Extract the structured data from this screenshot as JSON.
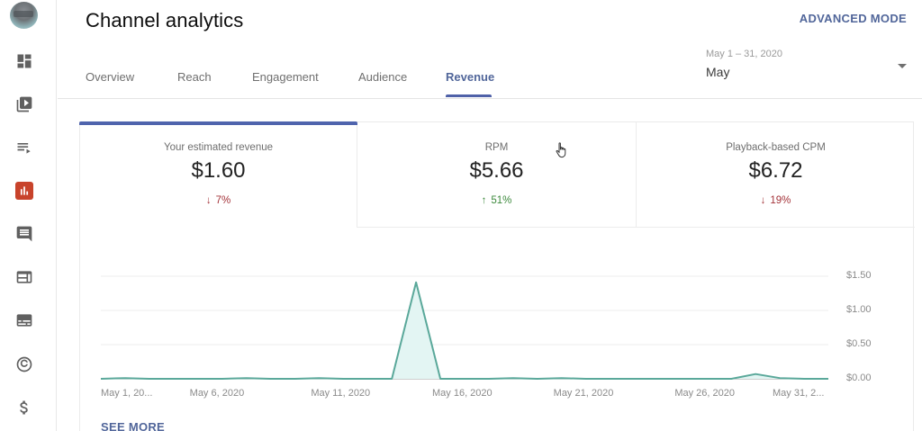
{
  "sidebar": {
    "items": [
      {
        "name": "dashboard",
        "icon": "dashboard-icon",
        "active": false
      },
      {
        "name": "content",
        "icon": "video-library-icon",
        "active": false
      },
      {
        "name": "playlists",
        "icon": "playlist-icon",
        "active": false
      },
      {
        "name": "analytics",
        "icon": "analytics-icon",
        "active": true
      },
      {
        "name": "comments",
        "icon": "comment-icon",
        "active": false
      },
      {
        "name": "subtitles",
        "icon": "web-icon",
        "active": false
      },
      {
        "name": "subtitles-cc",
        "icon": "subtitles-icon",
        "active": false
      },
      {
        "name": "copyright",
        "icon": "copyright-icon",
        "active": false
      },
      {
        "name": "monetization",
        "icon": "dollar-icon",
        "active": false
      }
    ],
    "active_color": "#c8432b"
  },
  "header": {
    "title": "Channel analytics",
    "advanced_mode": "ADVANCED MODE",
    "tabs": [
      {
        "label": "Overview",
        "active": false
      },
      {
        "label": "Reach",
        "active": false
      },
      {
        "label": "Engagement",
        "active": false
      },
      {
        "label": "Audience",
        "active": false
      },
      {
        "label": "Revenue",
        "active": true
      }
    ],
    "date_range": {
      "sub_label": "May 1 – 31, 2020",
      "selected": "May"
    }
  },
  "metrics": [
    {
      "label": "Your estimated revenue",
      "value": "$1.60",
      "delta": "7%",
      "direction": "down",
      "selected": true
    },
    {
      "label": "RPM",
      "value": "$5.66",
      "delta": "51%",
      "direction": "up",
      "selected": false
    },
    {
      "label": "Playback-based CPM",
      "value": "$6.72",
      "delta": "19%",
      "direction": "down",
      "selected": false
    }
  ],
  "arrows": {
    "down": "↓",
    "up": "↑"
  },
  "see_more": "SEE MORE",
  "colors": {
    "accent": "#4f64ad",
    "link": "#51669a",
    "line": "#5aa89a",
    "fill": "#e3f5f3",
    "down": "#a4343a",
    "up": "#3d8a3d"
  },
  "chart_data": {
    "type": "area",
    "title": "Your estimated revenue",
    "xlabel": "",
    "ylabel": "",
    "x": [
      "May 1",
      "May 2",
      "May 3",
      "May 4",
      "May 5",
      "May 6",
      "May 7",
      "May 8",
      "May 9",
      "May 10",
      "May 11",
      "May 12",
      "May 13",
      "May 14",
      "May 15",
      "May 16",
      "May 17",
      "May 18",
      "May 19",
      "May 20",
      "May 21",
      "May 22",
      "May 23",
      "May 24",
      "May 25",
      "May 26",
      "May 27",
      "May 28",
      "May 29",
      "May 30",
      "May 31"
    ],
    "series": [
      {
        "name": "Your estimated revenue",
        "values": [
          0.0,
          0.01,
          0.0,
          0.0,
          0.0,
          0.0,
          0.01,
          0.0,
          0.0,
          0.01,
          0.0,
          0.0,
          0.0,
          1.41,
          0.0,
          0.0,
          0.0,
          0.01,
          0.0,
          0.01,
          0.0,
          0.0,
          0.0,
          0.0,
          0.0,
          0.0,
          0.0,
          0.07,
          0.01,
          0.0,
          0.0
        ]
      }
    ],
    "x_tick_labels": [
      "May 1, 20...",
      "May 6, 2020",
      "May 11, 2020",
      "May 16, 2020",
      "May 21, 2020",
      "May 26, 2020",
      "May 31, 2..."
    ],
    "y_tick_labels": [
      "$0.00",
      "$0.50",
      "$1.00",
      "$1.50"
    ],
    "ylim": [
      0,
      1.5
    ],
    "grid": true,
    "y_axis_position": "right",
    "legend": "none"
  }
}
